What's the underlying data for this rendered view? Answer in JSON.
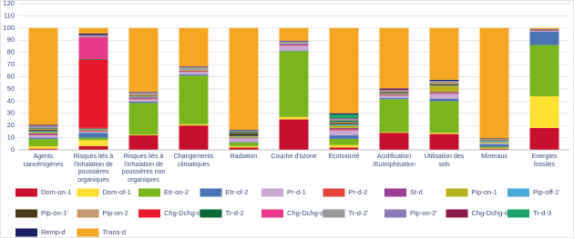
{
  "chart_data": {
    "type": "stacked_bar",
    "categories": [
      "Agents cancérogènes",
      "Risques liés à l'inhalation de poussières organiques",
      "Risques liés à l'inhalation de poussières non organiques",
      "Changements climatiques",
      "Radiation",
      "Couche d'ozone",
      "Ecotoxicité",
      "Acidification /Eutrophisation",
      "Utilisation des sols",
      "Mineraux",
      "Energies fossiles"
    ],
    "ylim": [
      0,
      120
    ],
    "yticks": [
      0,
      10,
      20,
      30,
      40,
      50,
      60,
      70,
      80,
      90,
      100,
      110,
      120
    ],
    "grid": true,
    "series": [
      {
        "name": "Dom-on-1",
        "color": "#c8102e",
        "values": [
          1,
          3,
          12,
          20,
          2,
          25,
          2,
          14,
          13,
          1,
          18
        ]
      },
      {
        "name": "Dom-of-1",
        "color": "#ffe033",
        "values": [
          2,
          5,
          0.5,
          1,
          1,
          2,
          2,
          0.5,
          1,
          0.5,
          26
        ]
      },
      {
        "name": "Etr-on-2",
        "color": "#7ab51d",
        "values": [
          6,
          2,
          26,
          40,
          3,
          54,
          5,
          27,
          26,
          1,
          42
        ]
      },
      {
        "name": "Etr-of-2",
        "color": "#4a74b4",
        "values": [
          1,
          4,
          1,
          1,
          0.5,
          0.5,
          3,
          1,
          2,
          2,
          11
        ]
      },
      {
        "name": "Pr-d-1",
        "color": "#c9a8d4",
        "values": [
          2,
          1,
          2,
          2,
          3,
          4,
          4,
          2,
          4,
          1,
          0.5
        ]
      },
      {
        "name": "Pr-d-2",
        "color": "#e0443a",
        "values": [
          0.5,
          0.5,
          0.5,
          0.5,
          0,
          0.5,
          1,
          0.5,
          0.5,
          0,
          0
        ]
      },
      {
        "name": "St-d",
        "color": "#9b3e96",
        "values": [
          1,
          0.5,
          1,
          0.5,
          0.5,
          1,
          1,
          0.5,
          1,
          0,
          0.5
        ]
      },
      {
        "name": "Pip-on-1",
        "color": "#b5b21e",
        "values": [
          1,
          0.5,
          0.5,
          0.5,
          1,
          0,
          2,
          0.5,
          5,
          1,
          0
        ]
      },
      {
        "name": "Pip-off-1'",
        "color": "#4aa8d8",
        "values": [
          1,
          0.5,
          0.5,
          0.5,
          0.5,
          0.5,
          1,
          0.5,
          0.5,
          1,
          0
        ]
      },
      {
        "name": "Pip-on-1'",
        "color": "#4a3b1a",
        "values": [
          1,
          0.5,
          0.5,
          0,
          2,
          0,
          1,
          1,
          1,
          0.5,
          0
        ]
      },
      {
        "name": "Pip-on-2",
        "color": "#c49a6c",
        "values": [
          1,
          0.5,
          1,
          1,
          0.5,
          0.5,
          1,
          0.5,
          1,
          1,
          0.5
        ]
      },
      {
        "name": "Chg-Dchg-d-2",
        "color": "#e8192c",
        "values": [
          0,
          56,
          0,
          0,
          0,
          0,
          0,
          0,
          0,
          0,
          0
        ]
      },
      {
        "name": "Tr-d-2",
        "color": "#0b6b3a",
        "values": [
          0.5,
          0.5,
          0,
          0,
          1,
          0,
          1,
          0,
          0,
          0,
          0
        ]
      },
      {
        "name": "Chg-Dchg-d-2'",
        "color": "#e8398a",
        "values": [
          0,
          18,
          0,
          0,
          0,
          0,
          0,
          0,
          0,
          0,
          0
        ]
      },
      {
        "name": "Tr-d-2'",
        "color": "#9a9a9a",
        "values": [
          1,
          1,
          1,
          0.5,
          0.5,
          0.5,
          1,
          0.5,
          1,
          0,
          0
        ]
      },
      {
        "name": "Pip-on-2'",
        "color": "#8a7ab8",
        "values": [
          1,
          0.5,
          0.5,
          0.5,
          0.5,
          0.5,
          0.5,
          0.5,
          0.5,
          0,
          0
        ]
      },
      {
        "name": "Chg-Dchg-d-3",
        "color": "#8b1a4a",
        "values": [
          0,
          0.5,
          0,
          0,
          0,
          0,
          0.5,
          1,
          0,
          0,
          0
        ]
      },
      {
        "name": "Tr-d-3",
        "color": "#1ba46a",
        "values": [
          0,
          0,
          0,
          0,
          0,
          0,
          3,
          0,
          0,
          0,
          0
        ]
      },
      {
        "name": "Remp-d",
        "color": "#1c2060",
        "values": [
          0.5,
          1,
          0.5,
          0.5,
          0.5,
          0.5,
          1,
          0.5,
          1,
          0.5,
          0.5
        ]
      },
      {
        "name": "Trans-d",
        "color": "#f5a623",
        "values": [
          79.5,
          4.5,
          52.5,
          31.5,
          83.5,
          10.5,
          70,
          49.5,
          42.5,
          90.5,
          1
        ]
      }
    ]
  }
}
